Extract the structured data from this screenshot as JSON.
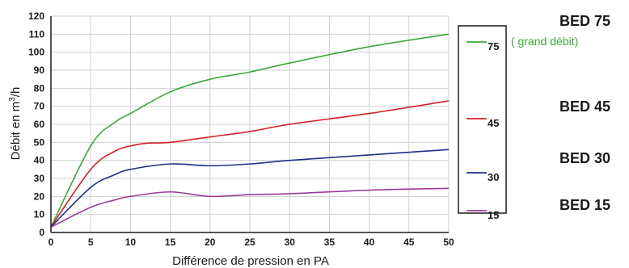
{
  "chart_data": {
    "type": "line",
    "xlabel": "Différence de pression en PA",
    "ylabel_main": "Débit en m",
    "ylabel_sup": "3",
    "ylabel_tail": "/h",
    "xlim": [
      0,
      50
    ],
    "ylim": [
      0,
      120
    ],
    "xticks": [
      "0",
      "5",
      "10",
      "15",
      "20",
      "25",
      "30",
      "35",
      "40",
      "45",
      "50"
    ],
    "yticks": [
      "0",
      "10",
      "20",
      "30",
      "40",
      "50",
      "60",
      "70",
      "80",
      "90",
      "100",
      "110",
      "120"
    ],
    "grid": true,
    "legend_placement": "right",
    "series": [
      {
        "name": "75",
        "color": "#3aaa35",
        "x": [
          0,
          5,
          8,
          10,
          15,
          20,
          25,
          30,
          40,
          50
        ],
        "y": [
          3,
          48,
          61,
          66,
          78,
          85,
          89,
          94,
          103,
          110
        ]
      },
      {
        "name": "45",
        "color": "#d42027",
        "x": [
          0,
          5,
          8,
          10,
          12,
          15,
          20,
          25,
          30,
          40,
          50
        ],
        "y": [
          3,
          35,
          45,
          48,
          49.5,
          50,
          53,
          56,
          60,
          66,
          73
        ]
      },
      {
        "name": "30",
        "color": "#1e2f8a",
        "x": [
          0,
          5,
          8,
          10,
          15,
          20,
          25,
          30,
          40,
          50
        ],
        "y": [
          3,
          25,
          32,
          35,
          38,
          37,
          38,
          40,
          43,
          46
        ]
      },
      {
        "name": "15",
        "color": "#9b3c9b",
        "x": [
          0,
          5,
          8,
          10,
          15,
          20,
          25,
          30,
          40,
          50
        ],
        "y": [
          3,
          14,
          18,
          20,
          22.5,
          20,
          21,
          21.5,
          23.5,
          24.5
        ]
      }
    ],
    "legend_note": "( grand débit)",
    "bed_labels": [
      "BED 75",
      "BED 45",
      "BED 30",
      "BED 15"
    ]
  }
}
